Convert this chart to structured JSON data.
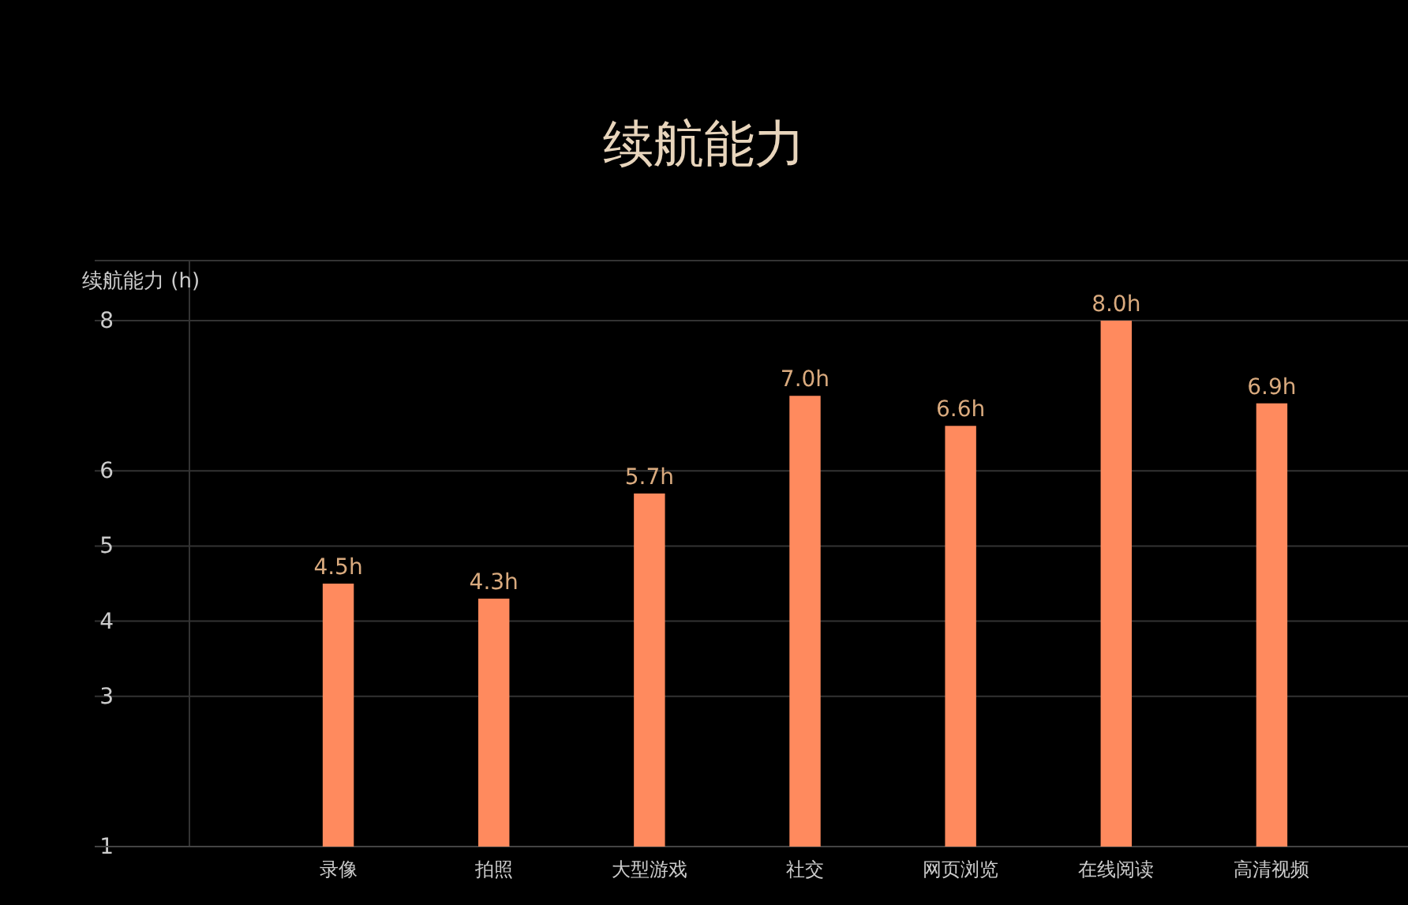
{
  "chart_data": {
    "type": "bar",
    "title": "续航能力",
    "ylabel": "续航能力 (h)",
    "categories": [
      "录像",
      "拍照",
      "大型游戏",
      "社交",
      "网页浏览",
      "在线阅读",
      "高清视频"
    ],
    "values": [
      4.5,
      4.3,
      5.7,
      7.0,
      6.6,
      8.0,
      6.9
    ],
    "value_labels": [
      "4.5h",
      "4.3h",
      "5.7h",
      "7.0h",
      "6.6h",
      "8.0h",
      "6.9h"
    ],
    "color": "#ff8a5e",
    "ylim": [
      1,
      8.8
    ],
    "yticks": [
      1,
      3,
      4,
      5,
      6,
      8
    ],
    "grid": "y"
  }
}
